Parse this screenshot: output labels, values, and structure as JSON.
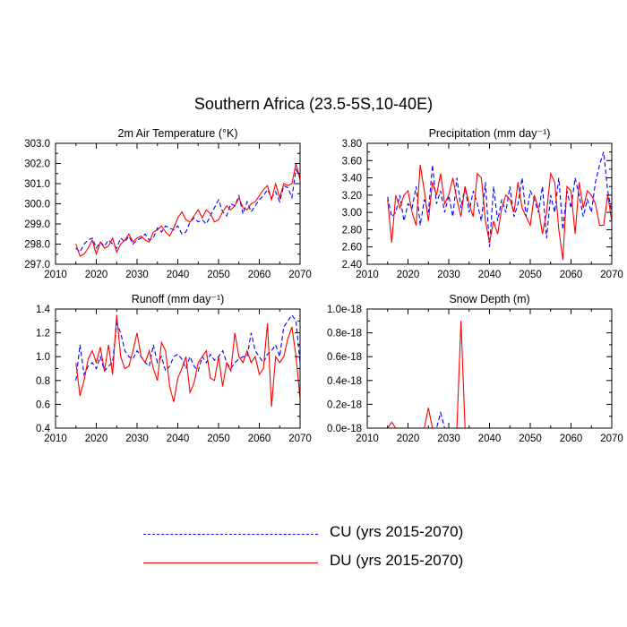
{
  "figure_title": "Southern Africa (23.5-5S,10-40E)",
  "legend": {
    "cu_label": "CU (yrs 2015-2070)",
    "du_label": "DU (yrs 2015-2070)"
  },
  "colors": {
    "cu": "#0000ff",
    "du": "#ff0000",
    "axis": "#000000"
  },
  "chart_data": [
    {
      "type": "line",
      "title": "2m Air Temperature (°K)",
      "xlabel": "",
      "ylabel": "",
      "xlim": [
        2010,
        2070
      ],
      "ylim": [
        297.0,
        303.0
      ],
      "xticks": [
        2010,
        2020,
        2030,
        2040,
        2050,
        2060,
        2070
      ],
      "xtick_labels": [
        "2010",
        "2020",
        "2030",
        "2040",
        "2050",
        "2060",
        "2070"
      ],
      "yticks": [
        297,
        298,
        299,
        300,
        301,
        302,
        303
      ],
      "ytick_labels": [
        "297.0",
        "298.0",
        "299.0",
        "300.0",
        "301.0",
        "302.0",
        "303.0"
      ],
      "x_start": 2015,
      "series": [
        {
          "name": "CU",
          "style": "dashed",
          "values": [
            297.8,
            297.6,
            298.0,
            298.2,
            298.3,
            297.8,
            298.1,
            297.9,
            298.2,
            298.0,
            297.8,
            298.3,
            298.1,
            298.4,
            298.0,
            298.2,
            298.3,
            298.5,
            298.2,
            298.3,
            298.8,
            298.6,
            298.9,
            298.8,
            298.7,
            298.9,
            298.5,
            298.6,
            299.1,
            299.3,
            299.1,
            299.2,
            299.0,
            299.4,
            299.8,
            300.2,
            299.6,
            299.4,
            300.0,
            299.9,
            300.4,
            299.5,
            300.1,
            299.6,
            299.9,
            300.2,
            300.4,
            300.7,
            300.3,
            300.6,
            300.1,
            300.9,
            300.8,
            300.3,
            301.7,
            301.3
          ]
        },
        {
          "name": "DU",
          "style": "solid",
          "values": [
            298.0,
            297.4,
            297.5,
            297.8,
            298.2,
            297.5,
            298.1,
            297.8,
            297.9,
            298.3,
            297.6,
            298.0,
            298.2,
            298.5,
            298.1,
            298.3,
            298.4,
            298.2,
            298.1,
            298.6,
            298.7,
            298.9,
            298.6,
            298.4,
            298.8,
            299.3,
            299.6,
            299.2,
            299.1,
            299.4,
            299.7,
            299.3,
            299.7,
            299.5,
            299.1,
            299.2,
            299.6,
            299.9,
            299.7,
            299.9,
            300.3,
            299.8,
            299.7,
            300.0,
            300.1,
            300.4,
            300.7,
            300.9,
            300.2,
            301.0,
            300.3,
            301.0,
            300.9,
            301.0,
            302.0,
            301.2
          ]
        }
      ]
    },
    {
      "type": "line",
      "title": "Precipitation (mm day⁻¹)",
      "xlabel": "",
      "ylabel": "",
      "xlim": [
        2010,
        2070
      ],
      "ylim": [
        2.4,
        3.8
      ],
      "xticks": [
        2010,
        2020,
        2030,
        2040,
        2050,
        2060,
        2070
      ],
      "xtick_labels": [
        "2010",
        "2020",
        "2030",
        "2040",
        "2050",
        "2060",
        "2070"
      ],
      "yticks": [
        2.4,
        2.6,
        2.8,
        3.0,
        3.2,
        3.4,
        3.6,
        3.8
      ],
      "ytick_labels": [
        "2.40",
        "2.60",
        "2.80",
        "3.00",
        "3.20",
        "3.40",
        "3.60",
        "3.80"
      ],
      "x_start": 2015,
      "series": [
        {
          "name": "CU",
          "style": "dashed",
          "values": [
            3.18,
            2.95,
            3.0,
            3.2,
            2.9,
            3.1,
            3.05,
            3.3,
            2.85,
            3.15,
            3.0,
            3.55,
            3.1,
            3.25,
            3.0,
            3.2,
            2.95,
            3.4,
            3.05,
            3.3,
            3.0,
            3.25,
            3.1,
            2.9,
            3.35,
            2.6,
            3.3,
            2.9,
            3.15,
            3.0,
            3.3,
            2.95,
            3.1,
            3.4,
            2.95,
            3.25,
            3.15,
            3.0,
            3.3,
            2.7,
            3.2,
            3.0,
            3.4,
            2.8,
            3.25,
            3.05,
            3.4,
            3.2,
            2.95,
            3.15,
            3.0,
            3.35,
            3.55,
            3.7,
            3.25,
            3.0
          ]
        },
        {
          "name": "DU",
          "style": "solid",
          "values": [
            3.15,
            2.65,
            3.2,
            3.05,
            3.2,
            3.25,
            3.0,
            2.85,
            3.55,
            3.25,
            2.9,
            3.35,
            3.2,
            3.45,
            3.1,
            3.2,
            3.4,
            3.15,
            2.95,
            3.3,
            3.1,
            2.95,
            3.45,
            3.4,
            2.9,
            2.65,
            2.9,
            2.75,
            3.05,
            3.2,
            3.15,
            3.0,
            3.35,
            3.05,
            2.95,
            2.85,
            3.2,
            3.05,
            2.75,
            3.0,
            3.45,
            3.35,
            2.8,
            2.45,
            3.3,
            3.25,
            2.75,
            3.35,
            3.05,
            3.25,
            3.2,
            3.1,
            2.85,
            2.85,
            3.2,
            2.9
          ]
        }
      ]
    },
    {
      "type": "line",
      "title": "Runoff (mm day⁻¹)",
      "xlabel": "",
      "ylabel": "",
      "xlim": [
        2010,
        2070
      ],
      "ylim": [
        0.4,
        1.4
      ],
      "xticks": [
        2010,
        2020,
        2030,
        2040,
        2050,
        2060,
        2070
      ],
      "xtick_labels": [
        "2010",
        "2020",
        "2030",
        "2040",
        "2050",
        "2060",
        "2070"
      ],
      "yticks": [
        0.4,
        0.6,
        0.8,
        1.0,
        1.2,
        1.4
      ],
      "ytick_labels": [
        "0.4",
        "0.6",
        "0.8",
        "1.0",
        "1.2",
        "1.4"
      ],
      "x_start": 2015,
      "series": [
        {
          "name": "CU",
          "style": "dashed",
          "values": [
            0.8,
            1.1,
            0.85,
            0.92,
            0.95,
            0.9,
            1.0,
            0.88,
            0.92,
            0.95,
            1.28,
            1.2,
            1.05,
            1.0,
            0.98,
            1.05,
            1.0,
            0.95,
            0.92,
            1.1,
            0.95,
            1.0,
            0.88,
            0.92,
            1.0,
            1.02,
            0.98,
            0.9,
            1.0,
            0.92,
            0.88,
            1.0,
            0.95,
            1.02,
            0.97,
            1.0,
            1.05,
            0.95,
            0.9,
            0.95,
            0.98,
            1.0,
            1.0,
            1.2,
            1.05,
            1.0,
            0.95,
            1.02,
            1.05,
            1.1,
            1.0,
            1.25,
            1.3,
            1.35,
            1.3,
            0.95
          ]
        },
        {
          "name": "DU",
          "style": "solid",
          "values": [
            0.95,
            0.67,
            0.8,
            0.98,
            1.05,
            0.95,
            1.08,
            0.88,
            1.1,
            0.85,
            1.35,
            1.0,
            0.9,
            0.92,
            1.05,
            1.2,
            1.0,
            0.95,
            1.05,
            0.9,
            0.8,
            1.12,
            1.05,
            0.75,
            0.62,
            0.82,
            0.9,
            1.0,
            0.7,
            0.78,
            0.95,
            1.0,
            1.05,
            0.82,
            0.8,
            1.0,
            0.75,
            0.95,
            0.88,
            1.2,
            1.0,
            0.95,
            1.05,
            0.95,
            1.0,
            0.85,
            0.9,
            1.28,
            0.58,
            1.0,
            0.95,
            1.0,
            1.15,
            1.25,
            1.0,
            0.65
          ]
        }
      ]
    },
    {
      "type": "line",
      "title": "Snow Depth (m)",
      "xlabel": "",
      "ylabel": "",
      "xlim": [
        2010,
        2070
      ],
      "ylim": [
        0.0,
        1.0
      ],
      "ytick_unit_note": "values in units of 1e-18 m",
      "xticks": [
        2010,
        2020,
        2030,
        2040,
        2050,
        2060,
        2070
      ],
      "xtick_labels": [
        "2010",
        "2020",
        "2030",
        "2040",
        "2050",
        "2060",
        "2070"
      ],
      "yticks": [
        0.0,
        0.2,
        0.4,
        0.6,
        0.8,
        1.0
      ],
      "ytick_labels": [
        "0.0e-18",
        "0.2e-18",
        "0.4e-18",
        "0.6e-18",
        "0.8e-18",
        "1.0e-18"
      ],
      "x_start": 2015,
      "series": [
        {
          "name": "CU",
          "style": "dashed",
          "values": [
            0,
            0,
            0,
            0,
            0,
            0,
            0,
            0,
            0,
            0,
            0,
            0,
            0,
            0.13,
            0,
            0,
            0,
            0,
            0,
            0,
            0,
            0,
            0,
            0,
            0,
            0,
            0,
            0,
            0,
            0,
            0,
            0,
            0,
            0,
            0,
            0,
            0,
            0,
            0,
            0,
            0,
            0,
            0,
            0,
            0,
            0,
            0,
            0,
            0,
            0,
            0,
            0,
            0,
            0,
            0,
            0
          ]
        },
        {
          "name": "DU",
          "style": "solid",
          "values": [
            0,
            0.05,
            0,
            0,
            0,
            0,
            0,
            0,
            0,
            0,
            0.17,
            0,
            0,
            0,
            0,
            0,
            0,
            0,
            0.9,
            0,
            0,
            0,
            0,
            0,
            0,
            0,
            0,
            0,
            0,
            0,
            0,
            0,
            0,
            0,
            0,
            0,
            0,
            0,
            0,
            0,
            0,
            0,
            0,
            0,
            0,
            0,
            0,
            0,
            0,
            0,
            0,
            0,
            0,
            0,
            0,
            0
          ]
        }
      ]
    }
  ]
}
